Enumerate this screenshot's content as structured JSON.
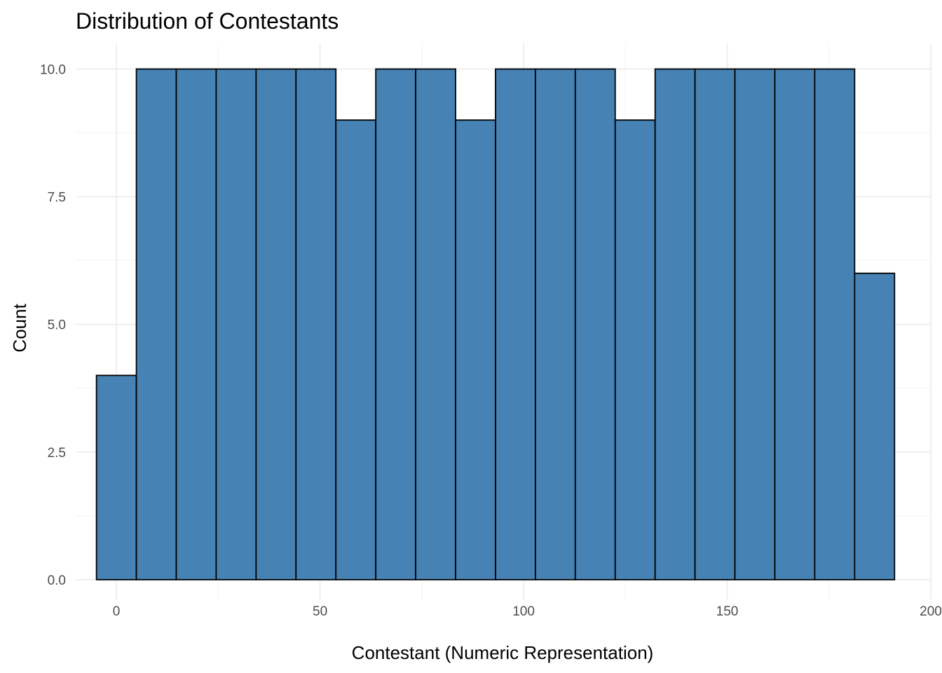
{
  "chart_data": {
    "type": "bar",
    "title": "Distribution of Contestants",
    "xlabel": "Contestant (Numeric Representation)",
    "ylabel": "Count",
    "xlim": [
      -10,
      200
    ],
    "ylim": [
      -0.4,
      10.5
    ],
    "x_ticks": [
      0,
      50,
      100,
      150,
      200
    ],
    "x_tick_labels": [
      "0",
      "50",
      "100",
      "150",
      "200"
    ],
    "y_ticks": [
      0,
      2.5,
      5,
      7.5,
      10
    ],
    "y_tick_labels": [
      "0.0",
      "2.5",
      "5.0",
      "7.5",
      "10.0"
    ],
    "grid": true,
    "bar_fill": "#4682b4",
    "bar_outline": "#000000",
    "bins": [
      {
        "x_start": -4.9,
        "x_end": 4.9,
        "value": 4
      },
      {
        "x_start": 4.9,
        "x_end": 14.7,
        "value": 10
      },
      {
        "x_start": 14.7,
        "x_end": 24.5,
        "value": 10
      },
      {
        "x_start": 24.5,
        "x_end": 34.3,
        "value": 10
      },
      {
        "x_start": 34.3,
        "x_end": 44.1,
        "value": 10
      },
      {
        "x_start": 44.1,
        "x_end": 53.9,
        "value": 10
      },
      {
        "x_start": 53.9,
        "x_end": 63.7,
        "value": 9
      },
      {
        "x_start": 63.7,
        "x_end": 73.5,
        "value": 10
      },
      {
        "x_start": 73.5,
        "x_end": 83.3,
        "value": 10
      },
      {
        "x_start": 83.3,
        "x_end": 93.1,
        "value": 9
      },
      {
        "x_start": 93.1,
        "x_end": 102.9,
        "value": 10
      },
      {
        "x_start": 102.9,
        "x_end": 112.7,
        "value": 10
      },
      {
        "x_start": 112.7,
        "x_end": 122.5,
        "value": 10
      },
      {
        "x_start": 122.5,
        "x_end": 132.3,
        "value": 9
      },
      {
        "x_start": 132.3,
        "x_end": 142.1,
        "value": 10
      },
      {
        "x_start": 142.1,
        "x_end": 151.9,
        "value": 10
      },
      {
        "x_start": 151.9,
        "x_end": 161.7,
        "value": 10
      },
      {
        "x_start": 161.7,
        "x_end": 171.5,
        "value": 10
      },
      {
        "x_start": 171.5,
        "x_end": 181.3,
        "value": 10
      },
      {
        "x_start": 181.3,
        "x_end": 191.1,
        "value": 6
      }
    ]
  }
}
